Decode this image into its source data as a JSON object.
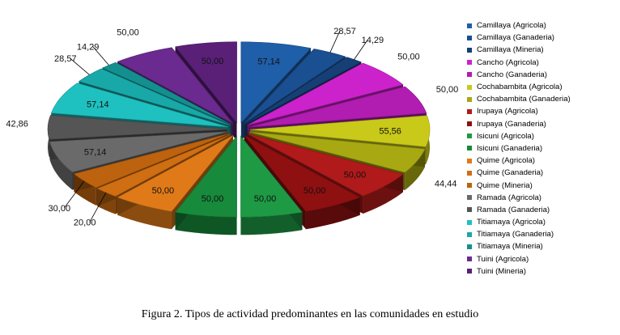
{
  "chart_data": {
    "type": "pie",
    "style": "3d-exploded",
    "title": "",
    "series": [
      {
        "name": "Camillaya (Agricola)",
        "value": 57.14,
        "color": "#1f5ea8"
      },
      {
        "name": "Camillaya (Ganaderia)",
        "value": 28.57,
        "color": "#1a4f91"
      },
      {
        "name": "Camillaya (Mineria)",
        "value": 14.29,
        "color": "#163f75"
      },
      {
        "name": "Cancho (Agricola)",
        "value": 50.0,
        "color": "#cc22cc"
      },
      {
        "name": "Cancho (Ganaderia)",
        "value": 50.0,
        "color": "#b01db0"
      },
      {
        "name": "Cochabambita (Agricola)",
        "value": 55.56,
        "color": "#c9c919"
      },
      {
        "name": "Cochabambita (Ganaderia)",
        "value": 44.44,
        "color": "#a8a812"
      },
      {
        "name": "Irupaya (Agricola)",
        "value": 50.0,
        "color": "#b01a1a"
      },
      {
        "name": "Irupaya (Ganaderia)",
        "value": 50.0,
        "color": "#8f1010"
      },
      {
        "name": "Isicuni (Agricola)",
        "value": 50.0,
        "color": "#1e9a45"
      },
      {
        "name": "Isicuni (Ganaderia)",
        "value": 50.0,
        "color": "#188a3b"
      },
      {
        "name": "Quime (Agricola)",
        "value": 50.0,
        "color": "#e07a18"
      },
      {
        "name": "Quime (Ganaderia)",
        "value": 20.0,
        "color": "#cf6e12"
      },
      {
        "name": "Quime (Mineria)",
        "value": 30.0,
        "color": "#bd620e"
      },
      {
        "name": "Ramada (Agricola)",
        "value": 57.14,
        "color": "#6a6a6a"
      },
      {
        "name": "Ramada (Ganaderia)",
        "value": 42.86,
        "color": "#555555"
      },
      {
        "name": "Titiamaya (Agricola)",
        "value": 57.14,
        "color": "#1fc0c0"
      },
      {
        "name": "Titiamaya (Ganaderia)",
        "value": 28.57,
        "color": "#19a8a8"
      },
      {
        "name": "Titiamaya (Mineria)",
        "value": 14.29,
        "color": "#148f8f"
      },
      {
        "name": "Tuini (Agricola)",
        "value": 50.0,
        "color": "#6a2a8f"
      },
      {
        "name": "Tuini (Mineria)",
        "value": 50.0,
        "color": "#5a2078"
      }
    ],
    "labels": [
      "57,14",
      "28,57",
      "14,29",
      "50,00",
      "50,00",
      "55,56",
      "44,44",
      "50,00",
      "50,00",
      "50,00",
      "50,00",
      "50,00",
      "20,00",
      "30,00",
      "57,14",
      "42,86",
      "57,14",
      "28,57",
      "14,29",
      "50,00",
      "50,00"
    ],
    "legend_position": "right"
  },
  "caption": "Figura 2. Tipos de actividad predominantes en las comunidades en estudio"
}
